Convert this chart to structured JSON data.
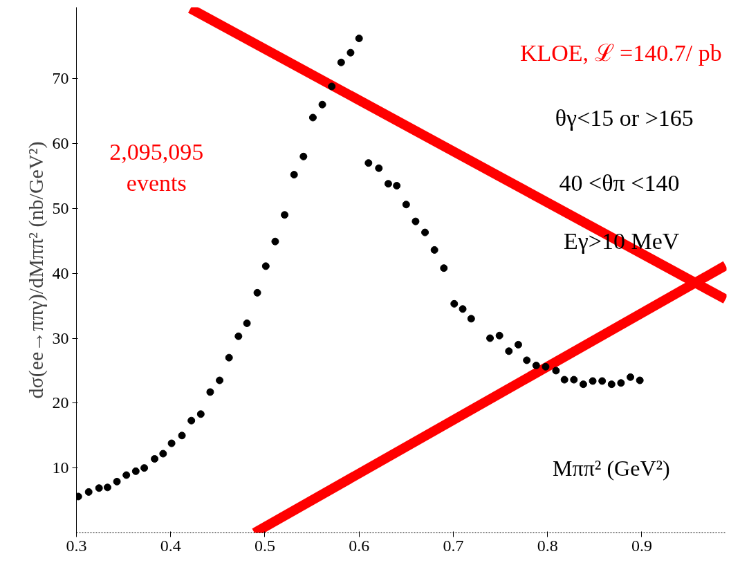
{
  "chart_data": {
    "type": "scatter",
    "xlabel": "Mππ² (GeV²)",
    "ylabel": "dσ(ee→ππγ)/dMππ² (nb/GeV²)",
    "annotations": [
      "KLOE, ℒ =140.7/ pb",
      "θγ<15 or >165",
      "40 <θπ <140",
      "Eγ>10 MeV",
      "2,095,095 events"
    ],
    "xlim": [
      0.3,
      0.99
    ],
    "ylim": [
      0,
      81
    ],
    "xticks": [
      0.3,
      0.4,
      0.5,
      0.6,
      0.7,
      0.8,
      0.9
    ],
    "yticks": [
      10,
      20,
      30,
      40,
      50,
      60,
      70
    ],
    "grid": false,
    "series": [
      {
        "marker": "circle",
        "color": "#000000",
        "x": [
          0.302,
          0.313,
          0.324,
          0.333,
          0.343,
          0.353,
          0.363,
          0.372,
          0.383,
          0.392,
          0.401,
          0.412,
          0.422,
          0.432,
          0.442,
          0.452,
          0.462,
          0.472,
          0.481,
          0.492,
          0.501,
          0.511,
          0.521,
          0.531,
          0.541,
          0.551,
          0.561,
          0.571,
          0.581,
          0.591,
          0.6,
          0.61,
          0.621,
          0.631,
          0.64,
          0.65,
          0.66,
          0.67,
          0.68,
          0.69,
          0.701,
          0.71,
          0.719,
          0.739,
          0.749,
          0.759,
          0.769,
          0.778,
          0.788,
          0.798,
          0.809,
          0.818,
          0.828,
          0.838,
          0.848,
          0.858,
          0.868,
          0.878,
          0.888,
          0.898
        ],
        "values": [
          5.6,
          6.3,
          6.9,
          7.0,
          7.9,
          8.9,
          9.5,
          10.0,
          11.4,
          12.2,
          13.8,
          15.0,
          17.3,
          18.3,
          21.7,
          23.5,
          27.0,
          30.3,
          32.3,
          37.0,
          41.1,
          44.9,
          49.0,
          55.2,
          58.0,
          64.0,
          66.0,
          68.8,
          72.5,
          74.0,
          76.2,
          57.0,
          56.2,
          53.8,
          53.5,
          50.6,
          48.0,
          46.3,
          43.6,
          40.8,
          35.3,
          34.5,
          33.0,
          30.0,
          30.4,
          28.0,
          29.0,
          26.6,
          25.8,
          25.6,
          25.0,
          23.6,
          23.6,
          22.9,
          23.4,
          23.4,
          22.9,
          23.1,
          24.0,
          23.5
        ]
      },
      {
        "type": "line",
        "color": "#ff0000",
        "x": [
          0.421,
          0.989
        ],
        "values": [
          80.8,
          36.0
        ]
      },
      {
        "type": "line",
        "color": "#ff0000",
        "x": [
          0.489,
          0.989
        ],
        "values": [
          0.0,
          41.2
        ]
      }
    ]
  }
}
